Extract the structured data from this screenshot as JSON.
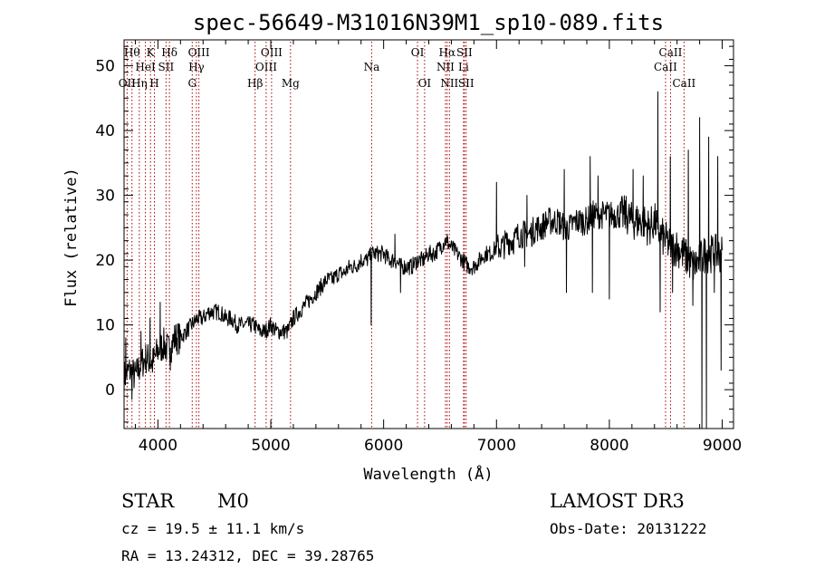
{
  "chart_data": {
    "type": "line",
    "title": "spec-56649-M31016N39M1_sp10-089.fits",
    "xlabel": "Wavelength (Å)",
    "ylabel": "Flux (relative)",
    "xlim": [
      3700,
      9100
    ],
    "ylim": [
      -6,
      54
    ],
    "xticks": [
      4000,
      5000,
      6000,
      7000,
      8000,
      9000
    ],
    "yticks": [
      0,
      10,
      20,
      30,
      40,
      50
    ],
    "line_color": "#000000",
    "marker_color": "#aa0000",
    "spectrum": {
      "x": [
        3700,
        3750,
        3800,
        3850,
        3900,
        3950,
        4000,
        4050,
        4100,
        4150,
        4200,
        4250,
        4300,
        4350,
        4400,
        4450,
        4500,
        4550,
        4600,
        4650,
        4700,
        4750,
        4800,
        4850,
        4900,
        4950,
        5000,
        5050,
        5100,
        5150,
        5200,
        5250,
        5300,
        5350,
        5400,
        5450,
        5500,
        5550,
        5600,
        5650,
        5700,
        5750,
        5800,
        5850,
        5900,
        5950,
        6000,
        6050,
        6100,
        6150,
        6200,
        6250,
        6300,
        6350,
        6400,
        6450,
        6500,
        6550,
        6600,
        6650,
        6700,
        6750,
        6800,
        6850,
        6900,
        6950,
        7000,
        7050,
        7100,
        7150,
        7200,
        7250,
        7300,
        7350,
        7400,
        7450,
        7500,
        7550,
        7600,
        7650,
        7700,
        7750,
        7800,
        7850,
        7900,
        7950,
        8000,
        8050,
        8100,
        8150,
        8200,
        8250,
        8300,
        8350,
        8400,
        8450,
        8500,
        8550,
        8600,
        8650,
        8700,
        8750,
        8800,
        8850,
        8900,
        8950,
        9000
      ],
      "y": [
        2,
        3,
        2,
        4,
        5,
        4,
        6,
        7,
        6,
        8,
        8,
        9,
        10,
        11,
        11,
        12,
        12,
        12,
        11,
        11,
        10,
        10,
        10,
        10,
        9,
        9,
        10,
        9,
        9,
        9,
        11,
        12,
        13,
        14,
        15,
        16,
        17,
        17,
        18,
        18,
        19,
        19,
        20,
        20,
        21,
        21,
        21,
        20,
        20,
        19,
        19,
        19,
        20,
        20,
        21,
        21,
        22,
        23,
        22,
        21,
        20,
        19,
        19,
        20,
        21,
        21,
        22,
        22,
        23,
        23,
        24,
        24,
        24,
        25,
        25,
        26,
        26,
        26,
        25,
        25,
        26,
        26,
        26,
        27,
        27,
        27,
        27,
        27,
        27,
        27,
        26,
        26,
        26,
        25,
        26,
        24,
        23,
        22,
        22,
        21,
        20,
        19,
        20,
        21,
        21,
        21,
        21
      ],
      "spikes": [
        {
          "x": 3715,
          "y": 8
        },
        {
          "x": 3770,
          "y": -1.5
        },
        {
          "x": 3850,
          "y": 9
        },
        {
          "x": 3930,
          "y": 11
        },
        {
          "x": 4020,
          "y": 13.5
        },
        {
          "x": 4110,
          "y": 3
        },
        {
          "x": 5350,
          "y": 14
        },
        {
          "x": 5430,
          "y": 16
        },
        {
          "x": 5890,
          "y": 10
        },
        {
          "x": 6100,
          "y": 24
        },
        {
          "x": 6150,
          "y": 15
        },
        {
          "x": 6563,
          "y": 24
        },
        {
          "x": 7000,
          "y": 32
        },
        {
          "x": 7250,
          "y": 19
        },
        {
          "x": 7270,
          "y": 30
        },
        {
          "x": 7600,
          "y": 34
        },
        {
          "x": 7620,
          "y": 15
        },
        {
          "x": 7830,
          "y": 36
        },
        {
          "x": 7850,
          "y": 15
        },
        {
          "x": 7900,
          "y": 33
        },
        {
          "x": 8000,
          "y": 14
        },
        {
          "x": 8210,
          "y": 34
        },
        {
          "x": 8300,
          "y": 33
        },
        {
          "x": 8430,
          "y": 46
        },
        {
          "x": 8450,
          "y": 12
        },
        {
          "x": 8540,
          "y": 36
        },
        {
          "x": 8560,
          "y": 15
        },
        {
          "x": 8700,
          "y": 37
        },
        {
          "x": 8740,
          "y": 13
        },
        {
          "x": 8800,
          "y": 42
        },
        {
          "x": 8820,
          "y": -6
        },
        {
          "x": 8860,
          "y": -6
        },
        {
          "x": 8880,
          "y": 39
        },
        {
          "x": 8930,
          "y": 15
        },
        {
          "x": 8960,
          "y": 36
        },
        {
          "x": 8990,
          "y": 3
        }
      ]
    },
    "lines": [
      {
        "wave": 3727,
        "label": "OII",
        "row": 3
      },
      {
        "wave": 3770,
        "label": "Hθ",
        "row": 1
      },
      {
        "wave": 3835,
        "label": "Hη",
        "row": 3
      },
      {
        "wave": 3889,
        "label": "HeI",
        "row": 2
      },
      {
        "wave": 3934,
        "label": "K",
        "row": 1
      },
      {
        "wave": 3969,
        "label": "H",
        "row": 3
      },
      {
        "wave": 4072,
        "label": "SII",
        "row": 2
      },
      {
        "wave": 4102,
        "label": "Hδ",
        "row": 1
      },
      {
        "wave": 4304,
        "label": "G",
        "row": 3
      },
      {
        "wave": 4341,
        "label": "Hγ",
        "row": 2
      },
      {
        "wave": 4363,
        "label": "OIII",
        "row": 1
      },
      {
        "wave": 4861,
        "label": "Hβ",
        "row": 3
      },
      {
        "wave": 4959,
        "label": "OIII",
        "row": 2
      },
      {
        "wave": 5007,
        "label": "OIII",
        "row": 1
      },
      {
        "wave": 5175,
        "label": "Mg",
        "row": 3
      },
      {
        "wave": 5894,
        "label": "Na",
        "row": 2
      },
      {
        "wave": 6300,
        "label": "OI",
        "row": 1
      },
      {
        "wave": 6363,
        "label": "OI",
        "row": 3
      },
      {
        "wave": 6548,
        "label": "NII",
        "row": 2
      },
      {
        "wave": 6563,
        "label": "Hα",
        "row": 1
      },
      {
        "wave": 6583,
        "label": "NII",
        "row": 3
      },
      {
        "wave": 6708,
        "label": "Li",
        "row": 2
      },
      {
        "wave": 6716,
        "label": "SII",
        "row": 1
      },
      {
        "wave": 6731,
        "label": "SII",
        "row": 3
      },
      {
        "wave": 8498,
        "label": "CaII",
        "row": 2
      },
      {
        "wave": 8542,
        "label": "CaII",
        "row": 1
      },
      {
        "wave": 8662,
        "label": "CaII",
        "row": 3
      }
    ]
  },
  "info": {
    "object_class": "STAR",
    "subclass": "M0",
    "survey": "LAMOST DR3",
    "redshift": "cz = 19.5 ± 11.1 km/s",
    "obs_date": "Obs-Date: 20131222",
    "coords": "RA =  13.24312, DEC =  39.28765"
  }
}
